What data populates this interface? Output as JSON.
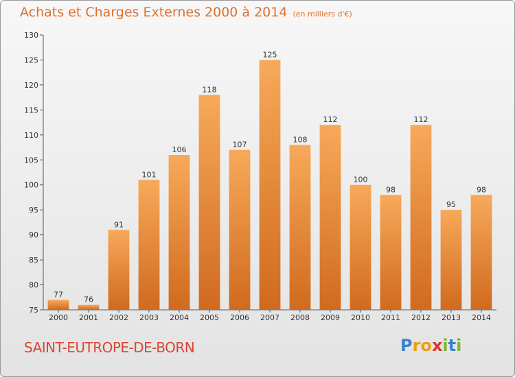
{
  "header": {
    "title": "Achats et Charges Externes 2000 à 2014",
    "subtitle": "(en milliers d'€)"
  },
  "footer": {
    "city": "SAINT-EUTROPE-DE-BORN",
    "logo_letters": [
      "P",
      "r",
      "o",
      "x",
      "i",
      "t",
      "i"
    ],
    "logo_colors": [
      "#3a7fd0",
      "#e8a01c",
      "#e8a01c",
      "#d9352a",
      "#7ab82e",
      "#3a7fd0",
      "#7ab82e"
    ]
  },
  "colors": {
    "bar_light": "#f7a95a",
    "bar_dark": "#d06a1e",
    "accent": "#e0702a"
  },
  "chart_data": {
    "type": "bar",
    "categories": [
      "2000",
      "2001",
      "2002",
      "2003",
      "2004",
      "2005",
      "2006",
      "2007",
      "2008",
      "2009",
      "2010",
      "2011",
      "2012",
      "2013",
      "2014"
    ],
    "values": [
      77,
      76,
      91,
      101,
      106,
      118,
      107,
      125,
      108,
      112,
      100,
      98,
      112,
      95,
      98
    ],
    "data_labels": [
      "77",
      "76",
      "91",
      "101",
      "106",
      "118",
      "107",
      "125",
      "108",
      "112",
      "100",
      "98",
      "112",
      "95",
      "98"
    ],
    "yticks": [
      75,
      80,
      85,
      90,
      95,
      100,
      105,
      110,
      115,
      120,
      125,
      130
    ],
    "ylim": [
      75,
      130
    ],
    "grid": false,
    "legend": "none",
    "title": "Achats et Charges Externes 2000 à 2014",
    "xlabel": "",
    "ylabel": ""
  }
}
